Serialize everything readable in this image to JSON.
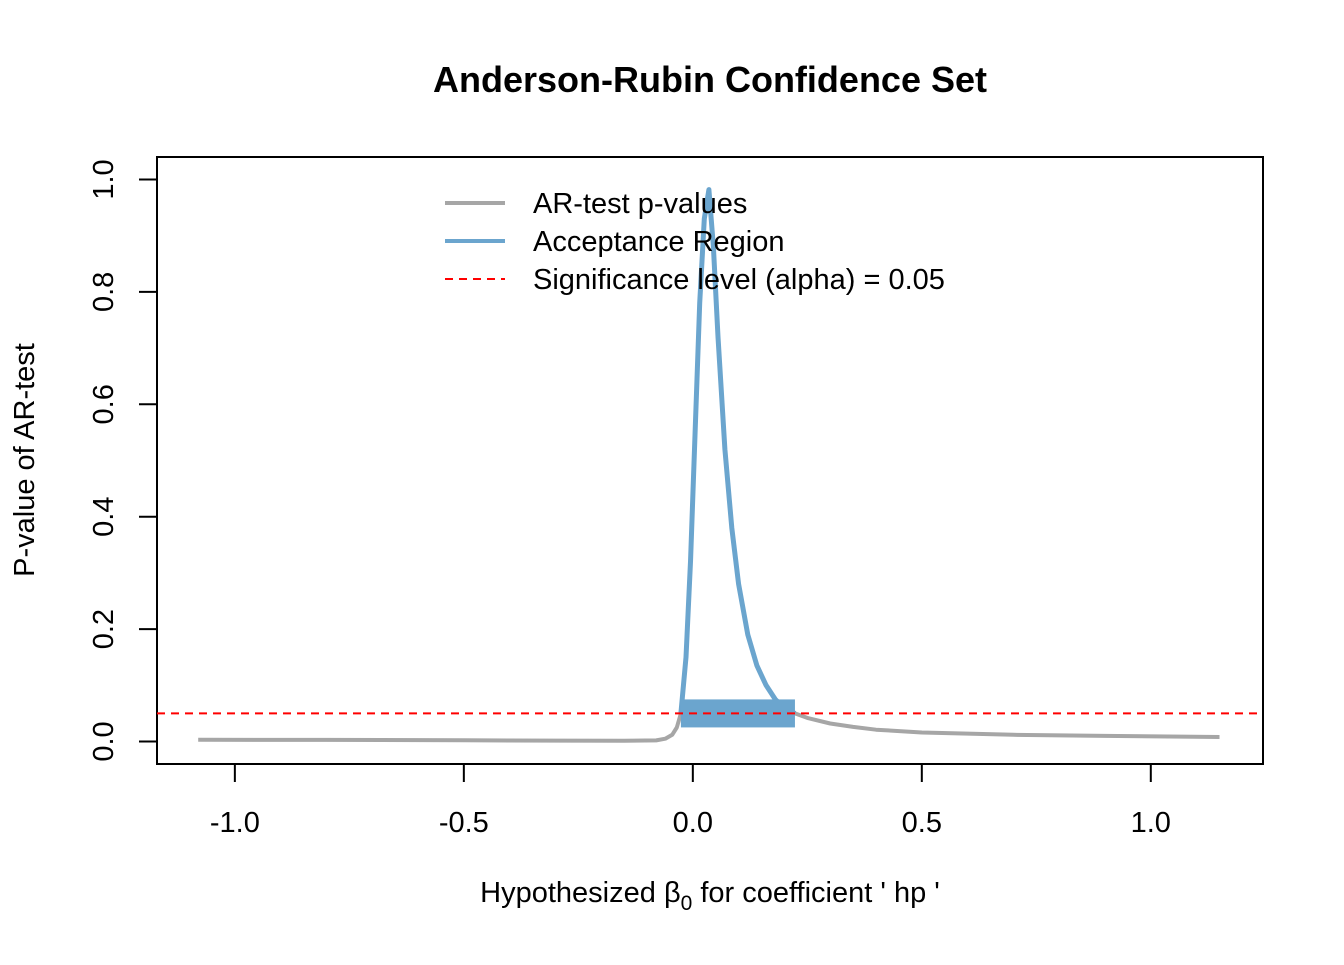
{
  "chart_data": {
    "type": "line",
    "title": "Anderson-Rubin Confidence Set",
    "xlabel_prefix": "Hypothesized β",
    "xlabel_sub": "0",
    "xlabel_suffix": " for coefficient ' hp '",
    "ylabel": "P-value of AR-test",
    "xlim": [
      -1.17,
      1.245
    ],
    "ylim": [
      -0.04,
      1.04
    ],
    "x_ticks": [
      -1.0,
      -0.5,
      0.0,
      0.5,
      1.0
    ],
    "x_tick_labels": [
      "-1.0",
      "-0.5",
      "0.0",
      "0.5",
      "1.0"
    ],
    "y_ticks": [
      0.0,
      0.2,
      0.4,
      0.6,
      0.8,
      1.0
    ],
    "y_tick_labels": [
      "0.0",
      "0.2",
      "0.4",
      "0.6",
      "0.8",
      "1.0"
    ],
    "grid": false,
    "series": [
      {
        "name": "AR-test p-values",
        "color": "#A6A6A6",
        "x": [
          -1.08,
          -0.8,
          -0.5,
          -0.3,
          -0.15,
          -0.08,
          -0.06,
          -0.045,
          -0.035,
          -0.026,
          -0.015,
          -0.005,
          0.005,
          0.015,
          0.025,
          0.035,
          0.045,
          0.055,
          0.07,
          0.085,
          0.1,
          0.12,
          0.14,
          0.16,
          0.18,
          0.2,
          0.223,
          0.25,
          0.3,
          0.35,
          0.4,
          0.5,
          0.7,
          0.9,
          1.15
        ],
        "y": [
          0.003,
          0.0028,
          0.0022,
          0.0016,
          0.0012,
          0.002,
          0.005,
          0.012,
          0.025,
          0.05,
          0.15,
          0.32,
          0.55,
          0.78,
          0.93,
          0.982,
          0.88,
          0.72,
          0.52,
          0.38,
          0.28,
          0.19,
          0.135,
          0.1,
          0.075,
          0.06,
          0.05,
          0.042,
          0.032,
          0.026,
          0.021,
          0.016,
          0.012,
          0.01,
          0.008
        ]
      }
    ],
    "acceptance_region": {
      "name": "Acceptance Region",
      "color": "#6BA5CE",
      "interval": [
        -0.026,
        0.223
      ]
    },
    "significance": {
      "name": "Significance level (alpha) = 0.05",
      "value": 0.05,
      "color": "#FF0000"
    },
    "legend": [
      "AR-test p-values",
      "Acceptance Region",
      "Significance level (alpha) = 0.05"
    ],
    "legend_position": "top-center"
  }
}
